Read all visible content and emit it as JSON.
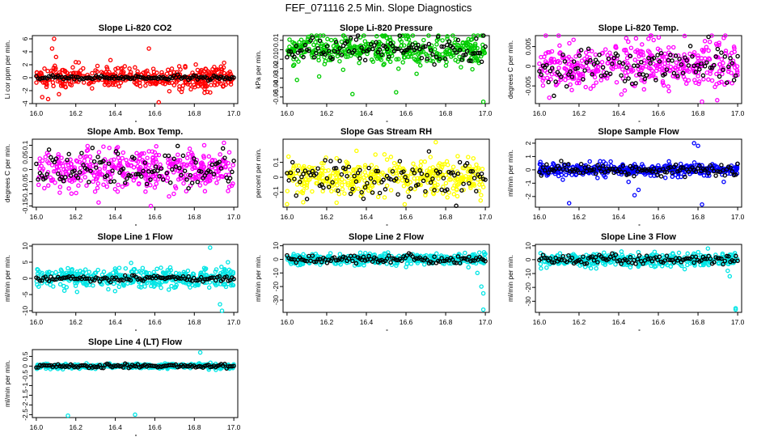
{
  "figure": {
    "title": "FEF_071116  2.5 Min. Slope Diagnostics"
  },
  "colors": {
    "reference": "#000000"
  },
  "chart_data": [
    {
      "type": "scatter",
      "title": "Slope Li-820 CO2",
      "ylabel": "Li cor ppm per min.",
      "color": "#ff0000",
      "xlim": [
        15.98,
        17.02
      ],
      "ylim": [
        -4,
        6.5
      ],
      "xticks": [
        16.0,
        16.2,
        16.4,
        16.6,
        16.8,
        17.0
      ],
      "yticks": [
        -4,
        -2,
        0,
        2,
        4,
        6
      ],
      "noise_sd": 0.9,
      "ref_sd": 0.15,
      "outliers": [
        [
          16.09,
          6.0
        ],
        [
          16.08,
          4.5
        ],
        [
          16.03,
          -3.0
        ],
        [
          16.06,
          -3.3
        ],
        [
          16.57,
          4.5
        ],
        [
          16.62,
          -3.8
        ],
        [
          16.1,
          3.2
        ],
        [
          16.2,
          2.4
        ]
      ]
    },
    {
      "type": "scatter",
      "title": "Slope Li-820 Pressure",
      "ylabel": "kPa per min.",
      "color": "#00cc00",
      "xlim": [
        15.98,
        17.02
      ],
      "ylim": [
        -0.057,
        0.015
      ],
      "xticks": [
        16.0,
        16.2,
        16.4,
        16.6,
        16.8,
        17.0
      ],
      "yticks": [
        -0.05,
        -0.04,
        -0.03,
        -0.02,
        -0.01,
        0.0,
        0.01
      ],
      "noise_sd": 0.008,
      "ref_sd": 0.006,
      "outliers": [
        [
          16.33,
          -0.047
        ],
        [
          16.55,
          -0.045
        ],
        [
          16.99,
          -0.055
        ],
        [
          16.05,
          -0.032
        ]
      ]
    },
    {
      "type": "scatter",
      "title": "Slope Li-820 Temp.",
      "ylabel": "degrees C per min.",
      "color": "#ff00ff",
      "xlim": [
        15.98,
        17.02
      ],
      "ylim": [
        -0.0095,
        0.0078
      ],
      "xticks": [
        16.0,
        16.2,
        16.4,
        16.6,
        16.8,
        17.0
      ],
      "yticks": [
        -0.005,
        0.0,
        0.005
      ],
      "noise_sd": 0.0032,
      "ref_sd": 0.0025,
      "outliers": [
        [
          16.93,
          0.0072
        ],
        [
          16.55,
          0.007
        ],
        [
          16.82,
          -0.009
        ],
        [
          16.05,
          -0.008
        ]
      ]
    },
    {
      "type": "scatter",
      "title": "Slope Amb. Box Temp.",
      "ylabel": "degrees C per min.",
      "color": "#ff00ff",
      "xlim": [
        15.98,
        17.02
      ],
      "ylim": [
        -0.155,
        0.125
      ],
      "xticks": [
        16.0,
        16.2,
        16.4,
        16.6,
        16.8,
        17.0
      ],
      "yticks": [
        -0.15,
        -0.1,
        -0.05,
        0.0,
        0.05,
        0.1
      ],
      "noise_sd": 0.042,
      "ref_sd": 0.035,
      "outliers": [
        [
          16.58,
          -0.15
        ],
        [
          16.95,
          0.11
        ],
        [
          16.85,
          0.1
        ]
      ]
    },
    {
      "type": "scatter",
      "title": "Slope Gas Stream RH",
      "ylabel": "percent per min.",
      "color": "#ffff00",
      "xlim": [
        15.98,
        17.02
      ],
      "ylim": [
        -0.2,
        0.255
      ],
      "xticks": [
        16.0,
        16.2,
        16.4,
        16.6,
        16.8,
        17.0
      ],
      "yticks": [
        -0.1,
        0.0,
        0.1
      ],
      "noise_sd": 0.058,
      "ref_sd": 0.065,
      "outliers": [
        [
          16.75,
          0.235
        ],
        [
          16.0,
          -0.18
        ],
        [
          16.25,
          -0.17
        ]
      ]
    },
    {
      "type": "scatter",
      "title": "Slope Sample Flow",
      "ylabel": "ml/min per min.",
      "color": "#0000ff",
      "xlim": [
        15.98,
        17.02
      ],
      "ylim": [
        -2.8,
        2.3
      ],
      "xticks": [
        16.0,
        16.2,
        16.4,
        16.6,
        16.8,
        17.0
      ],
      "yticks": [
        -2,
        -1,
        0,
        1,
        2
      ],
      "noise_sd": 0.22,
      "ref_sd": 0.25,
      "outliers": [
        [
          16.78,
          2.0
        ],
        [
          16.8,
          1.8
        ],
        [
          16.82,
          -2.6
        ],
        [
          16.15,
          -2.5
        ],
        [
          16.5,
          -1.5
        ],
        [
          16.45,
          -0.9
        ],
        [
          16.48,
          -1.9
        ],
        [
          16.93,
          -0.9
        ]
      ]
    },
    {
      "type": "scatter",
      "title": "Slope Line 1 Flow",
      "ylabel": "ml/min per min.",
      "color": "#00e5e5",
      "xlim": [
        15.98,
        17.02
      ],
      "ylim": [
        -10.5,
        10.5
      ],
      "xticks": [
        16.0,
        16.2,
        16.4,
        16.6,
        16.8,
        17.0
      ],
      "yticks": [
        -10,
        -5,
        0,
        5,
        10
      ],
      "noise_sd": 1.5,
      "ref_sd": 0.5,
      "outliers": [
        [
          16.93,
          -8.0
        ],
        [
          16.94,
          -10.0
        ],
        [
          16.88,
          9.5
        ],
        [
          16.97,
          5.0
        ],
        [
          16.85,
          3.2
        ]
      ]
    },
    {
      "type": "scatter",
      "title": "Slope Line 2 Flow",
      "ylabel": "ml/min per min.",
      "color": "#00e5e5",
      "xlim": [
        15.98,
        17.02
      ],
      "ylim": [
        -39,
        11
      ],
      "xticks": [
        16.0,
        16.2,
        16.4,
        16.6,
        16.8,
        17.0
      ],
      "yticks": [
        -30,
        -20,
        -10,
        0,
        10
      ],
      "noise_sd": 2.0,
      "ref_sd": 1.5,
      "outliers": [
        [
          16.98,
          -20.0
        ],
        [
          16.99,
          -25.0
        ],
        [
          16.99,
          -37.0
        ],
        [
          16.96,
          -10.0
        ],
        [
          16.97,
          5.0
        ]
      ]
    },
    {
      "type": "scatter",
      "title": "Slope Line 3 Flow",
      "ylabel": "ml/min per min.",
      "color": "#00e5e5",
      "xlim": [
        15.98,
        17.02
      ],
      "ylim": [
        -38,
        11
      ],
      "xticks": [
        16.0,
        16.2,
        16.4,
        16.6,
        16.8,
        17.0
      ],
      "yticks": [
        -30,
        -20,
        -10,
        0,
        10
      ],
      "noise_sd": 2.3,
      "ref_sd": 1.7,
      "outliers": [
        [
          16.95,
          -8.0
        ],
        [
          16.96,
          -12.0
        ],
        [
          16.99,
          -36.0
        ],
        [
          16.99,
          -35.0
        ],
        [
          16.92,
          -3.0
        ],
        [
          16.85,
          8.0
        ]
      ]
    },
    {
      "type": "scatter",
      "title": "Slope Line 4 (LT) Flow",
      "ylabel": "ml/min per min.",
      "color": "#00e5e5",
      "xlim": [
        15.98,
        17.02
      ],
      "ylim": [
        -2.65,
        0.85
      ],
      "xticks": [
        16.0,
        16.2,
        16.4,
        16.6,
        16.8,
        17.0
      ],
      "yticks": [
        -2.5,
        -2.0,
        -1.5,
        -1.0,
        -0.5,
        0.0,
        0.5
      ],
      "noise_sd": 0.06,
      "ref_sd": 0.05,
      "outliers": [
        [
          16.16,
          -2.55
        ],
        [
          16.5,
          -2.5
        ],
        [
          16.83,
          0.7
        ]
      ]
    }
  ]
}
